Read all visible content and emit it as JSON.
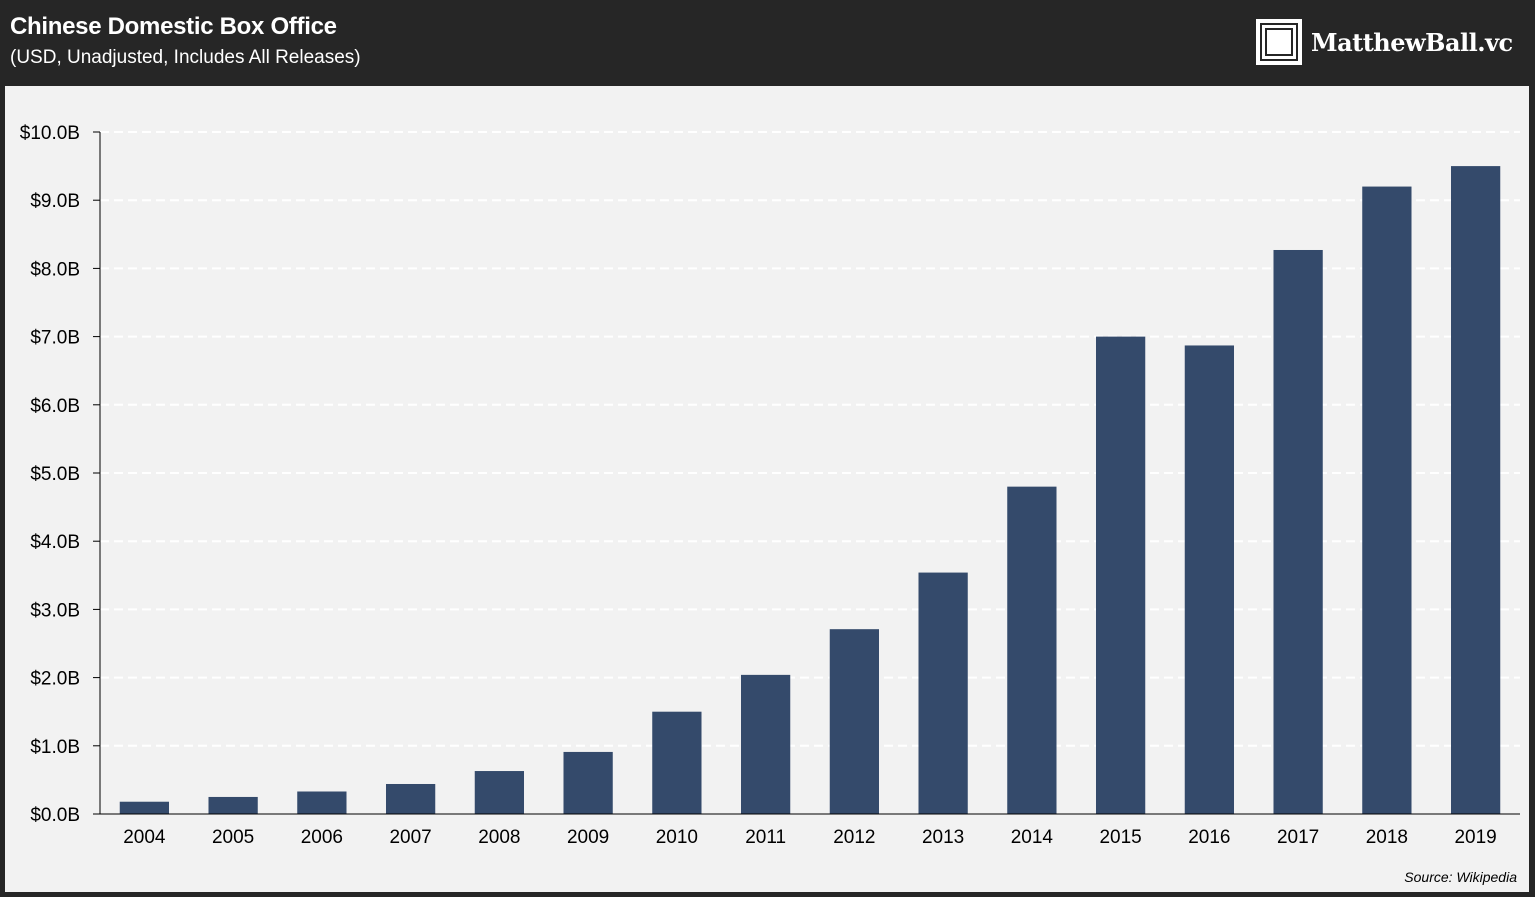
{
  "header": {
    "title": "Chinese Domestic Box Office",
    "subtitle": "(USD, Unadjusted, Includes All Releases)",
    "brand": "MatthewBall.vc",
    "brand_logo_icon": "framed-square-logo-icon"
  },
  "footer": {
    "source": "Source: Wikipedia"
  },
  "colors": {
    "background": "#f2f2f2",
    "frame": "#262626",
    "bar": "#344a6b",
    "grid": "#ffffff",
    "axis": "#000000"
  },
  "chart_data": {
    "type": "bar",
    "title": "Chinese Domestic Box Office",
    "subtitle": "(USD, Unadjusted, Includes All Releases)",
    "xlabel": "",
    "ylabel": "",
    "categories": [
      "2004",
      "2005",
      "2006",
      "2007",
      "2008",
      "2009",
      "2010",
      "2011",
      "2012",
      "2013",
      "2014",
      "2015",
      "2016",
      "2017",
      "2018",
      "2019"
    ],
    "values": [
      0.18,
      0.25,
      0.33,
      0.44,
      0.63,
      0.91,
      1.5,
      2.04,
      2.71,
      3.54,
      4.8,
      7.0,
      6.87,
      8.27,
      9.2,
      9.5
    ],
    "ylim": [
      0,
      10
    ],
    "yticks": [
      0,
      1,
      2,
      3,
      4,
      5,
      6,
      7,
      8,
      9,
      10
    ],
    "ytick_labels": [
      "$0.0B",
      "$1.0B",
      "$2.0B",
      "$3.0B",
      "$4.0B",
      "$5.0B",
      "$6.0B",
      "$7.0B",
      "$8.0B",
      "$9.0B",
      "$10.0B"
    ],
    "grid": "horizontal dashed",
    "legend": "none",
    "source": "Source: Wikipedia"
  }
}
